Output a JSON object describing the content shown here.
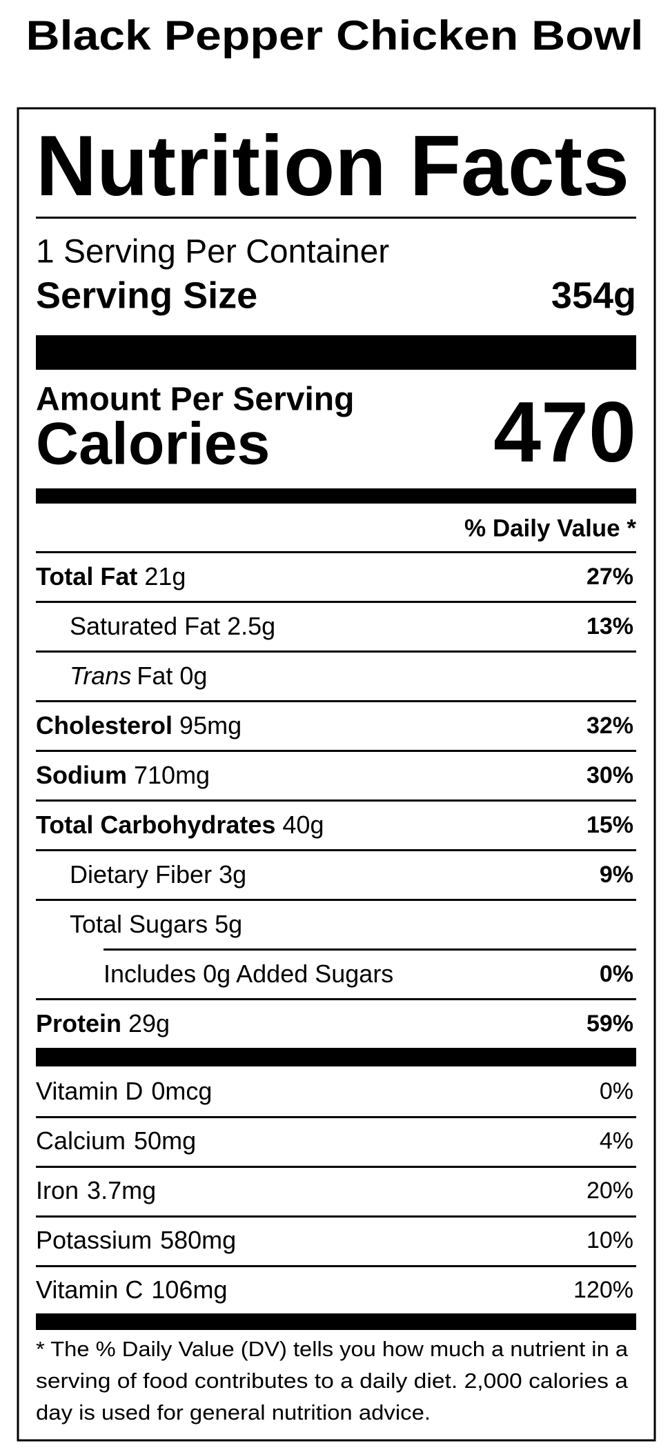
{
  "title": "Black Pepper Chicken Bowl",
  "label": {
    "heading": "Nutrition Facts",
    "servings": "1 Serving Per Container",
    "serving_size_label": "Serving Size",
    "serving_size": "354g",
    "amount_per_serving": "Amount Per Serving",
    "calories_label": "Calories",
    "calories": 470,
    "daily_value_header": "% Daily Value *",
    "nutrients": [
      {
        "name": "Total Fat",
        "amount": "21g",
        "dv": "27%",
        "level": 0
      },
      {
        "name": "Saturated Fat",
        "amount": "2.5g",
        "dv": "13%",
        "level": 1
      },
      {
        "prefix": "Trans",
        "name": "Fat",
        "amount": "0g",
        "level": 1
      },
      {
        "name": "Cholesterol",
        "amount": "95mg",
        "dv": "32%",
        "level": 0
      },
      {
        "name": "Sodium",
        "amount": "710mg",
        "dv": "30%",
        "level": 0
      },
      {
        "name": "Total Carbohydrates",
        "amount": "40g",
        "dv": "15%",
        "level": 0
      },
      {
        "name": "Dietary Fiber",
        "amount": "3g",
        "dv": "9%",
        "level": 1
      },
      {
        "name": "Total Sugars",
        "amount": "5g",
        "level": 1
      },
      {
        "name": "Includes 0g Added Sugars",
        "dv": "0%",
        "level": 2
      },
      {
        "name": "Protein",
        "amount": "29g",
        "dv": "59%",
        "level": 0
      }
    ],
    "vitamins": [
      {
        "name": "Vitamin D",
        "amount": "0mcg",
        "dv": "0%"
      },
      {
        "name": "Calcium",
        "amount": "50mg",
        "dv": "4%"
      },
      {
        "name": "Iron",
        "amount": "3.7mg",
        "dv": "20%"
      },
      {
        "name": "Potassium",
        "amount": "580mg",
        "dv": "10%"
      },
      {
        "name": "Vitamin C",
        "amount": "106mg",
        "dv": "120%"
      }
    ],
    "footnote": [
      "* The % Daily Value (DV) tells you how much a nutrient in a",
      "serving of food contributes to a daily diet. 2,000 calories a",
      "day is used for general nutrition advice."
    ]
  }
}
